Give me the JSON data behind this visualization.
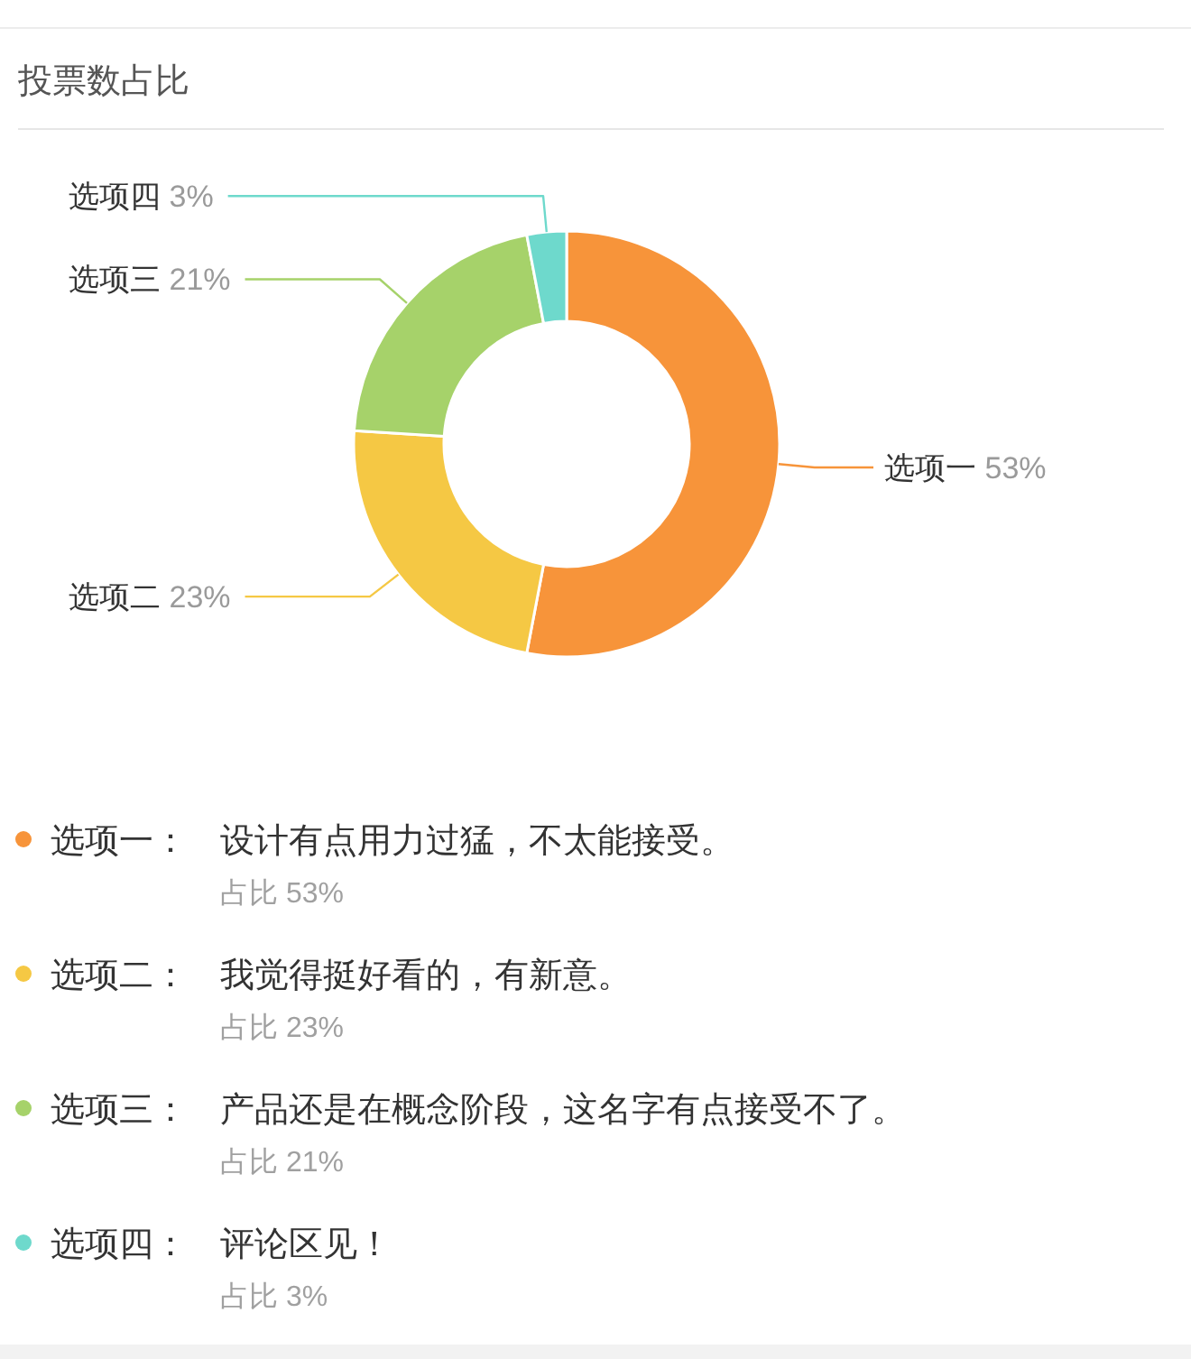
{
  "chart_data": {
    "type": "donut",
    "title": "投票数占比",
    "categories": [
      "选项一",
      "选项二",
      "选项三",
      "选项四"
    ],
    "values": [
      53,
      23,
      21,
      3
    ],
    "colors": [
      "#f7943a",
      "#f5c844",
      "#a6d26a",
      "#6ed9cc"
    ],
    "value_labels": [
      "53%",
      "23%",
      "21%",
      "3%"
    ],
    "legend": "bottom",
    "annotations": [
      "：",
      "设计有点用力过猛，不太能接受。",
      "占比 53%",
      "：",
      "我觉得挺好看的，有新意。",
      "占比 23%",
      "：",
      "产品还是在概念阶段，这名字有点接受不了。",
      "占比 21%",
      "：",
      "评论区见！",
      "占比 3%"
    ]
  }
}
